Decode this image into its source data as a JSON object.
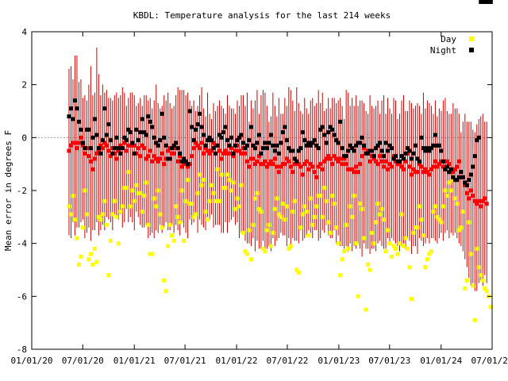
{
  "chart_data": {
    "type": "scatter",
    "title": "KBDL: Temperature analysis for the last 214 weeks",
    "ylabel": "Mean error in degrees F",
    "xlabel": "",
    "ylim": [
      -8,
      4
    ],
    "yticks": [
      -8,
      -6,
      -4,
      -2,
      0,
      2,
      4
    ],
    "xlim": [
      "2020-01-01",
      "2024-07-01"
    ],
    "xticks": [
      "01/01/20",
      "07/01/20",
      "01/01/21",
      "07/01/21",
      "01/01/22",
      "07/01/22",
      "01/01/23",
      "07/01/23",
      "01/01/24",
      "07/01/24"
    ],
    "legend": {
      "placement": "top-right",
      "entries": [
        "Day",
        "Night"
      ]
    },
    "zero_line": true,
    "colors": {
      "day": "#ffff00",
      "night": "#000000",
      "mean": "#ff0000",
      "range": "#cc0000",
      "zero": "#a0a0a0"
    },
    "weeks": 214,
    "x_start": "2020-05-13",
    "x_end": "2024-06-26",
    "day_series": [
      -2.6,
      -2.9,
      -2.2,
      -3.1,
      -3.8,
      -4.8,
      -4.5,
      -3.4,
      -2.0,
      -2.9,
      -4.6,
      -4.4,
      -4.8,
      -4.2,
      -4.7,
      -3.0,
      -3.1,
      -2.9,
      -2.4,
      -3.3,
      -5.2,
      -3.9,
      -2.9,
      -2.4,
      -3.0,
      -4.0,
      -2.8,
      -2.6,
      -1.9,
      -1.9,
      -1.3,
      -2.6,
      -2.0,
      -2.4,
      -1.8,
      -2.1,
      -2.1,
      -2.8,
      -2.2,
      -1.7,
      -3.3,
      -4.4,
      -4.4,
      -2.3,
      -2.6,
      -2.0,
      -2.9,
      -3.4,
      -5.4,
      -5.8,
      -4.1,
      -3.3,
      -3.7,
      -3.9,
      -2.6,
      -3.0,
      -3.2,
      -2.0,
      -3.9,
      -2.4,
      -1.6,
      -2.5,
      -2.5,
      -3.0,
      -2.9,
      -2.1,
      -1.4,
      -1.8,
      -1.6,
      -2.8,
      -3.1,
      -2.4,
      -1.8,
      -2.1,
      -2.4,
      -1.2,
      -2.4,
      -1.4,
      -1.9,
      -1.9,
      -1.4,
      -1.6,
      -2.0,
      -1.7,
      -2.7,
      -2.3,
      -2.6,
      -1.8,
      -3.6,
      -4.3,
      -4.4,
      -3.5,
      -4.6,
      -3.3,
      -2.3,
      -2.1,
      -2.7,
      -2.8,
      -4.2,
      -4.3,
      -3.5,
      -3.3,
      -4.1,
      -3.6,
      -2.7,
      -2.3,
      -2.9,
      -3.0,
      -2.5,
      -3.1,
      -2.6,
      -4.2,
      -4.1,
      -2.8,
      -2.4,
      -5.0,
      -5.1,
      -3.4,
      -2.9,
      -2.6,
      -2.8,
      -3.7,
      -2.3,
      -3.3,
      -3.0,
      -2.6,
      -2.2,
      -2.2,
      -3.0,
      -1.9,
      -2.4,
      -3.2,
      -3.6,
      -2.2,
      -2.5,
      -3.4,
      -4.0,
      -5.2,
      -4.6,
      -4.3,
      -3.3,
      -4.2,
      -2.6,
      -3.0,
      -2.2,
      -4.0,
      -6.0,
      -2.5,
      -2.7,
      -3.8,
      -6.5,
      -4.8,
      -5.0,
      -3.6,
      -4.0,
      -3.2,
      -2.5,
      -2.9,
      -2.7,
      -3.1,
      -4.3,
      -3.5,
      -4.0,
      -4.5,
      -4.1,
      -4.2,
      -4.4,
      -4.0,
      -2.9,
      -4.1,
      -3.8,
      -4.2,
      -4.9,
      -6.1,
      -3.6,
      -3.4,
      -3.4,
      -2.6,
      -3.1,
      -3.7,
      -4.9,
      -4.6,
      -4.4,
      -4.3,
      -2.8,
      -2.6,
      -3.0,
      -3.1,
      -3.2,
      -2.6,
      -2.0,
      -2.2,
      -1.7,
      -2.0,
      -1.6,
      -2.3,
      -2.5,
      -3.5,
      -3.4,
      -2.8,
      -5.7,
      -5.4,
      -3.2,
      -4.4,
      -5.6,
      -6.9,
      -4.2,
      -4.9,
      -5.2,
      -5.4,
      -5.7,
      -5.8,
      -6.0,
      -6.4
    ],
    "night_series": [
      0.8,
      1.1,
      0.7,
      1.4,
      1.1,
      0.6,
      0.3,
      -0.2,
      -0.4,
      0.3,
      0.3,
      -0.4,
      0.0,
      0.7,
      0.1,
      -0.4,
      -0.6,
      -0.1,
      1.1,
      0.1,
      0.5,
      -0.1,
      -0.6,
      -0.4,
      0.0,
      -0.4,
      -0.6,
      -0.4,
      0.0,
      -0.1,
      0.3,
      0.2,
      -0.2,
      -0.6,
      0.3,
      -0.1,
      0.2,
      0.7,
      0.2,
      0.1,
      0.8,
      0.6,
      0.4,
      0.0,
      -0.2,
      -0.3,
      -0.1,
      0.9,
      0.0,
      -0.3,
      -0.8,
      -0.8,
      -0.4,
      -0.3,
      -0.2,
      -0.4,
      -0.6,
      -0.9,
      -0.8,
      -0.9,
      -1.0,
      1.0,
      0.4,
      -0.1,
      0.3,
      0.5,
      0.9,
      0.4,
      0.1,
      -0.3,
      -0.1,
      0.0,
      -0.1,
      -0.4,
      -0.6,
      -0.3,
      0.1,
      0.0,
      0.2,
      0.4,
      -0.1,
      -0.3,
      0.0,
      -0.6,
      -0.3,
      -0.1,
      0.0,
      0.1,
      -0.2,
      -0.4,
      -0.3,
      -0.1,
      0.4,
      -0.3,
      -0.4,
      -0.2,
      0.1,
      -0.6,
      -0.4,
      -0.2,
      -0.4,
      -0.2,
      0.1,
      -0.3,
      -0.5,
      -0.3,
      -0.6,
      -0.2,
      0.2,
      0.4,
      -0.1,
      -0.4,
      -0.5,
      -0.5,
      -0.8,
      -0.9,
      -0.5,
      -0.4,
      0.2,
      -0.1,
      -0.3,
      -0.2,
      -0.3,
      -0.2,
      -0.1,
      -0.3,
      -0.4,
      0.3,
      0.4,
      0.1,
      -0.2,
      0.2,
      0.4,
      0.3,
      0.1,
      -0.1,
      -0.2,
      0.6,
      -0.4,
      -0.7,
      -0.7,
      -0.5,
      -0.3,
      -0.4,
      -0.5,
      -0.3,
      -0.2,
      -0.2,
      0.0,
      -0.3,
      -0.6,
      -0.6,
      -0.5,
      -0.5,
      -0.7,
      -0.4,
      -0.3,
      -0.2,
      -0.5,
      -0.7,
      -0.2,
      -0.5,
      -0.3,
      -0.4,
      -0.8,
      -0.7,
      -0.9,
      -0.9,
      -0.7,
      -0.8,
      -0.6,
      -0.4,
      -0.5,
      -0.8,
      -0.6,
      -0.3,
      -0.8,
      -0.9,
      0.0,
      -0.4,
      -0.5,
      -0.4,
      -0.5,
      -0.4,
      -0.3,
      0.1,
      -0.3,
      -0.3,
      -0.5,
      -0.9,
      -1.2,
      -1.1,
      -1.3,
      -1.2,
      -1.5,
      -1.6,
      -1.6,
      -1.5,
      -1.3,
      -1.5,
      -1.7,
      -1.8,
      -1.6,
      -1.4,
      -1.1,
      -0.7,
      -0.1,
      0.0
    ],
    "mean_series": [
      -0.5,
      -0.3,
      -0.2,
      -0.2,
      -0.4,
      -0.2,
      0.0,
      -0.3,
      -0.6,
      -0.4,
      -0.7,
      -0.9,
      -1.2,
      -0.8,
      -0.6,
      -0.5,
      -0.3,
      -0.4,
      -0.2,
      -0.3,
      -0.5,
      -0.7,
      -0.4,
      -0.6,
      -0.8,
      -0.5,
      -0.3,
      -0.4,
      -0.2,
      -0.5,
      -0.3,
      -0.3,
      -0.2,
      -0.3,
      -0.6,
      -0.4,
      -0.7,
      -0.3,
      -0.4,
      -0.8,
      -0.7,
      -0.5,
      -0.9,
      -0.7,
      -0.8,
      -0.9,
      -0.8,
      -0.6,
      -1.0,
      -0.8,
      -0.5,
      -0.4,
      -0.6,
      -0.6,
      -0.4,
      -0.9,
      -0.7,
      -1.1,
      -1.0,
      -0.9,
      -1.1,
      -1.0,
      -0.7,
      -0.4,
      -0.2,
      -0.3,
      -0.4,
      -0.2,
      -0.6,
      -0.4,
      -0.5,
      -0.6,
      -0.5,
      -0.2,
      -0.3,
      -0.3,
      -0.5,
      -0.8,
      -0.6,
      -0.5,
      -0.6,
      -0.6,
      -0.4,
      -0.7,
      -0.5,
      -0.3,
      -0.5,
      -0.6,
      -0.4,
      -0.6,
      -0.9,
      -1.1,
      -0.8,
      -0.8,
      -1.0,
      -0.9,
      -0.7,
      -1.0,
      -1.0,
      -0.9,
      -1.1,
      -1.0,
      -0.9,
      -1.0,
      -0.8,
      -1.1,
      -1.3,
      -1.1,
      -1.0,
      -1.0,
      -0.8,
      -0.9,
      -1.1,
      -1.3,
      -1.0,
      -0.9,
      -1.0,
      -1.1,
      -1.4,
      -1.0,
      -0.9,
      -1.2,
      -1.0,
      -1.1,
      -1.3,
      -1.5,
      -1.1,
      -1.0,
      -1.2,
      -0.9,
      -0.8,
      -0.7,
      -0.8,
      -1.0,
      -0.7,
      -0.8,
      -0.9,
      -0.8,
      -1.0,
      -0.8,
      -1.0,
      -1.2,
      -1.2,
      -1.2,
      -1.3,
      -1.1,
      -1.3,
      -1.0,
      -0.7,
      -0.4,
      -0.6,
      -0.5,
      -0.9,
      -0.7,
      -0.8,
      -0.9,
      -1.0,
      -0.7,
      -0.9,
      -1.1,
      -0.9,
      -1.2,
      -1.0,
      -1.1,
      -0.7,
      -0.9,
      -1.0,
      -1.0,
      -1.1,
      -1.2,
      -0.9,
      -0.6,
      -1.1,
      -1.4,
      -1.2,
      -1.3,
      -1.3,
      -1.0,
      -1.1,
      -1.3,
      -1.2,
      -1.3,
      -1.4,
      -1.2,
      -1.1,
      -0.9,
      -1.1,
      -1.0,
      -0.9,
      -1.1,
      -0.9,
      -0.9,
      -1.0,
      -1.2,
      -1.3,
      -1.2,
      -1.1,
      -0.9,
      -1.3,
      -1.5,
      -1.8,
      -2.1,
      -2.3,
      -2.0,
      -2.2,
      -2.4,
      -2.5,
      -2.4,
      -2.6,
      -2.4,
      -2.3,
      -2.5
    ],
    "range_top": [
      2.6,
      2.7,
      2.2,
      3.1,
      3.1,
      2.1,
      2.2,
      1.5,
      1.6,
      1.4,
      2.0,
      2.7,
      1.6,
      1.7,
      3.4,
      2.4,
      1.6,
      2.0,
      1.7,
      1.8,
      1.5,
      1.5,
      1.4,
      1.6,
      1.7,
      1.5,
      1.6,
      1.9,
      1.7,
      1.2,
      1.5,
      1.7,
      1.7,
      1.6,
      1.2,
      1.3,
      1.5,
      1.2,
      1.6,
      1.6,
      1.4,
      1.5,
      1.1,
      1.4,
      2.0,
      1.3,
      1.1,
      1.2,
      1.6,
      1.4,
      1.7,
      1.3,
      1.1,
      1.2,
      1.6,
      1.9,
      1.8,
      1.8,
      1.8,
      1.6,
      1.7,
      1.4,
      1.2,
      1.4,
      1.0,
      1.2,
      1.6,
      1.9,
      1.1,
      0.8,
      1.7,
      0.9,
      0.7,
      1.3,
      1.0,
      1.2,
      1.4,
      1.2,
      1.1,
      0.9,
      1.6,
      1.2,
      1.1,
      1.1,
      0.9,
      1.4,
      1.2,
      1.6,
      1.6,
      1.2,
      1.7,
      0.6,
      1.4,
      1.1,
      1.4,
      1.8,
      0.9,
      1.6,
      1.8,
      1.7,
      1.2,
      0.6,
      0.8,
      1.7,
      1.2,
      0.8,
      1.5,
      0.9,
      0.9,
      1.5,
      1.2,
      1.9,
      1.8,
      1.4,
      1.0,
      1.9,
      1.3,
      1.0,
      0.9,
      1.5,
      1.1,
      0.9,
      1.4,
      1.5,
      1.2,
      1.3,
      1.8,
      1.3,
      1.7,
      1.0,
      1.1,
      1.5,
      1.1,
      1.5,
      1.5,
      1.3,
      1.4,
      1.5,
      1.2,
      0.7,
      1.8,
      1.7,
      1.2,
      1.5,
      1.2,
      1.6,
      1.2,
      1.4,
      1.4,
      1.3,
      1.0,
      0.9,
      1.6,
      1.2,
      1.1,
      1.2,
      1.4,
      0.9,
      1.4,
      1.6,
      0.9,
      1.5,
      1.1,
      0.9,
      1.5,
      1.4,
      0.7,
      0.9,
      1.4,
      1.6,
      1.0,
      1.0,
      1.4,
      1.3,
      1.1,
      1.2,
      1.3,
      1.2,
      0.9,
      1.7,
      1.1,
      1.4,
      1.3,
      1.2,
      0.9,
      1.4,
      0.8,
      1.1,
      1.0,
      1.4,
      1.5,
      1.0,
      0.9,
      0.9,
      1.3,
      1.1,
      1.1,
      0.9,
      0.2,
      0.6,
      0.9,
      0.6,
      0.6,
      0.6,
      0.3,
      0.2,
      0.5,
      0.7,
      0.8,
      0.9,
      0.6,
      0.6
    ],
    "range_bottom": [
      -3.7,
      -3.8,
      -3.2,
      -3.7,
      -3.4,
      -3.4,
      -3.2,
      -3.1,
      -3.8,
      -3.6,
      -3.4,
      -3.9,
      -3.5,
      -3.5,
      -3.2,
      -3.7,
      -3.5,
      -3.3,
      -3.5,
      -3.0,
      -3.1,
      -3.2,
      -3.5,
      -2.9,
      -3.0,
      -3.1,
      -2.9,
      -3.4,
      -3.2,
      -2.7,
      -3.2,
      -3.0,
      -3.2,
      -3.5,
      -2.8,
      -3.0,
      -3.3,
      -3.4,
      -3.4,
      -3.3,
      -3.8,
      -3.7,
      -3.6,
      -3.8,
      -3.5,
      -3.6,
      -3.3,
      -3.6,
      -3.4,
      -3.2,
      -3.5,
      -3.5,
      -3.3,
      -3.6,
      -3.3,
      -3.5,
      -3.7,
      -3.2,
      -3.4,
      -3.6,
      -3.8,
      -3.1,
      -3.3,
      -3.2,
      -2.9,
      -3.6,
      -3.1,
      -3.3,
      -3.4,
      -3.5,
      -3.0,
      -3.1,
      -2.9,
      -3.4,
      -3.3,
      -3.3,
      -3.3,
      -3.6,
      -3.6,
      -3.2,
      -3.6,
      -3.2,
      -3.1,
      -3.0,
      -3.3,
      -3.2,
      -3.8,
      -3.6,
      -3.6,
      -3.9,
      -4.0,
      -4.0,
      -4.1,
      -3.8,
      -4.3,
      -3.9,
      -4.2,
      -4.2,
      -3.9,
      -4.2,
      -4.2,
      -4.1,
      -4.3,
      -3.8,
      -4.1,
      -3.9,
      -3.8,
      -3.6,
      -3.7,
      -3.7,
      -4.1,
      -3.8,
      -4.2,
      -3.8,
      -3.9,
      -3.9,
      -4.0,
      -3.5,
      -3.9,
      -3.8,
      -3.7,
      -3.5,
      -3.6,
      -3.8,
      -3.5,
      -3.5,
      -3.9,
      -3.8,
      -3.5,
      -3.6,
      -3.3,
      -3.7,
      -3.8,
      -3.8,
      -3.5,
      -4.0,
      -3.7,
      -4.1,
      -4.1,
      -4.2,
      -4.1,
      -4.3,
      -4.0,
      -4.3,
      -4.1,
      -4.2,
      -4.0,
      -4.2,
      -4.5,
      -4.0,
      -4.2,
      -4.2,
      -4.4,
      -4.2,
      -4.2,
      -4.3,
      -4.0,
      -3.9,
      -4.1,
      -4.2,
      -4.2,
      -3.8,
      -4.0,
      -3.8,
      -3.9,
      -4.0,
      -4.1,
      -4.3,
      -4.1,
      -4.0,
      -4.2,
      -3.8,
      -3.9,
      -4.4,
      -4.1,
      -4.1,
      -4.4,
      -3.8,
      -3.9,
      -4.1,
      -4.0,
      -3.8,
      -4.0,
      -3.8,
      -3.8,
      -3.9,
      -4.0,
      -3.8,
      -3.6,
      -3.9,
      -3.6,
      -3.5,
      -3.8,
      -3.6,
      -3.7,
      -3.6,
      -3.8,
      -4.0,
      -4.1,
      -4.3,
      -4.6,
      -4.9,
      -5.3,
      -5.6,
      -5.5,
      -5.8,
      -5.8,
      -5.5,
      -5.4,
      -5.6,
      -5.2,
      -5.5
    ]
  }
}
